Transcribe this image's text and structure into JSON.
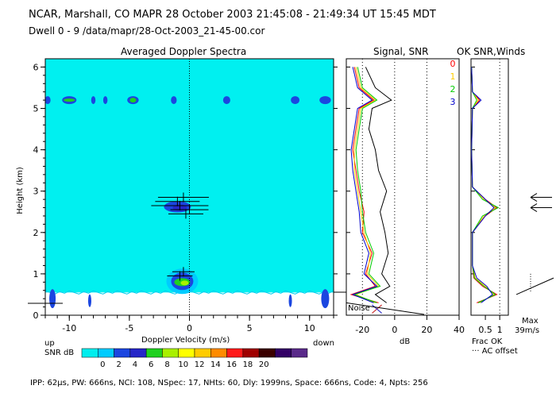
{
  "header": {
    "line1": "NCAR, Marshall, CO  MAPR  28 October 2003  21:45:08 - 21:49:34 UT    15:45 MDT",
    "line2": "Dwell  0 -  9   /data/mapr/28-Oct-2003_21-45-00.cor"
  },
  "footer": {
    "params": "IPP:  62µs,  PW:  666ns,  NCI: 108,  NSpec: 17,  NHts: 60,  Dly: 1999ns,  Space:  666ns,  Code: 4,  Npts: 256"
  },
  "colors": {
    "background": "#00f0f0",
    "scale": [
      "#00eeee",
      "#00ccff",
      "#1b46e0",
      "#2626c8",
      "#1fd11f",
      "#a9f000",
      "#ffff00",
      "#ffcc00",
      "#ff8c00",
      "#ff1a1a",
      "#a00000",
      "#3b0000",
      "#330066",
      "#5a2a8a"
    ]
  },
  "chart_data": [
    {
      "type": "heatmap",
      "title": "Averaged Doppler Spectra",
      "xlabel": "Doppler Velocity (m/s)",
      "ylabel": "Height (km)",
      "xlim": [
        -12,
        12
      ],
      "ylim": [
        0,
        6.2
      ],
      "x_ticks": [
        -10,
        -5,
        0,
        5,
        10
      ],
      "y_ticks": [
        0,
        1,
        2,
        3,
        4,
        5,
        6
      ],
      "x_left_label": "up",
      "x_right_label": "down",
      "colorbar": {
        "label": "SNR dB",
        "ticks": [
          "0",
          "2",
          "4",
          "6",
          "8",
          "10",
          "12",
          "14",
          "16",
          "18",
          "20"
        ]
      },
      "features": [
        {
          "name": "echo-layer-5km",
          "velocity_center": 0,
          "height_km": 5.2
        },
        {
          "name": "echo-layer-2.6km",
          "velocity_center": -0.5,
          "height_km": 2.6
        },
        {
          "name": "echo-lowlevel-0.8km",
          "velocity_center": -1,
          "height_km": 0.8
        }
      ]
    },
    {
      "type": "line",
      "title": "Signal, SNR",
      "xlabel": "dB",
      "x_ticks": [
        -20,
        0,
        20,
        40
      ],
      "xlim": [
        -30,
        40
      ],
      "ylim": [
        0,
        6.2
      ],
      "annotation": "Noise",
      "series": [
        {
          "name": "Signal",
          "color": "#000000",
          "height": [
            0.3,
            0.5,
            0.7,
            1.0,
            1.5,
            2.0,
            2.5,
            3.0,
            3.5,
            4.0,
            4.5,
            5.0,
            5.2,
            5.5,
            6.0
          ],
          "values": [
            -5,
            -12,
            -3,
            -8,
            -4,
            -6,
            -9,
            -5,
            -10,
            -12,
            -16,
            -14,
            -2,
            -12,
            -18
          ]
        },
        {
          "name": "SNR 0",
          "color": "#ff0000",
          "height": [
            0.3,
            0.5,
            0.7,
            1.0,
            1.5,
            2.0,
            2.5,
            3.0,
            3.5,
            4.0,
            4.5,
            5.0,
            5.2,
            5.5,
            6.0
          ],
          "values": [
            -10,
            -27,
            -12,
            -18,
            -14,
            -20,
            -19,
            -22,
            -24,
            -26,
            -24,
            -22,
            -13,
            -22,
            -25
          ]
        },
        {
          "name": "SNR 1",
          "color": "#ffcc00",
          "height": [
            0.3,
            0.5,
            0.7,
            1.0,
            1.5,
            2.0,
            2.5,
            3.0,
            3.5,
            4.0,
            4.5,
            5.0,
            5.2,
            5.5,
            6.0
          ],
          "values": [
            -12,
            -24,
            -10,
            -17,
            -15,
            -19,
            -21,
            -23,
            -25,
            -25,
            -23,
            -21,
            -12,
            -21,
            -24
          ]
        },
        {
          "name": "SNR 2",
          "color": "#00cc00",
          "height": [
            0.3,
            0.5,
            0.7,
            1.0,
            1.5,
            2.0,
            2.5,
            3.0,
            3.5,
            4.0,
            4.5,
            5.0,
            5.2,
            5.5,
            6.0
          ],
          "values": [
            -11,
            -25,
            -9,
            -16,
            -13,
            -18,
            -20,
            -21,
            -23,
            -24,
            -22,
            -20,
            -11,
            -20,
            -23
          ]
        },
        {
          "name": "SNR 3",
          "color": "#0000cc",
          "height": [
            0.3,
            0.5,
            0.7,
            1.0,
            1.5,
            2.0,
            2.5,
            3.0,
            3.5,
            4.0,
            4.5,
            5.0,
            5.2,
            5.5,
            6.0
          ],
          "values": [
            -13,
            -26,
            -11,
            -19,
            -16,
            -21,
            -22,
            -24,
            -26,
            -27,
            -25,
            -23,
            -14,
            -23,
            -26
          ]
        }
      ]
    },
    {
      "type": "line",
      "title": "OK SNR,Winds",
      "xlabel": "Frac OK",
      "x_ticks": [
        "0.5",
        "1"
      ],
      "xlim": [
        0,
        1.3
      ],
      "ylim": [
        0,
        6.2
      ],
      "legend": [
        "0",
        "1",
        "2",
        "3"
      ],
      "notes": {
        "max_label": "Max",
        "max_value": "39m/s",
        "offset_label": "··· AC offset"
      },
      "series": [
        {
          "name": "0",
          "color": "#ff0000",
          "height": [
            0.3,
            0.5,
            0.7,
            0.9,
            1.2,
            2.0,
            2.4,
            2.6,
            2.8,
            3.1,
            4.0,
            5.0,
            5.2,
            5.4,
            6.0
          ],
          "values": [
            0.2,
            0.9,
            0.4,
            0.1,
            0.05,
            0.05,
            0.5,
            0.9,
            0.5,
            0.05,
            0.02,
            0.05,
            0.3,
            0.05,
            0.02
          ]
        },
        {
          "name": "1",
          "color": "#ffcc00",
          "height": [
            0.3,
            0.5,
            0.7,
            0.9,
            1.2,
            2.0,
            2.4,
            2.6,
            2.8,
            3.1,
            4.0,
            5.0,
            5.2,
            5.4,
            6.0
          ],
          "values": [
            0.3,
            0.8,
            0.5,
            0.15,
            0.05,
            0.05,
            0.45,
            0.85,
            0.45,
            0.05,
            0.02,
            0.05,
            0.25,
            0.05,
            0.02
          ]
        },
        {
          "name": "2",
          "color": "#00cc00",
          "height": [
            0.3,
            0.5,
            0.7,
            0.9,
            1.2,
            2.0,
            2.4,
            2.6,
            2.8,
            3.1,
            4.0,
            5.0,
            5.2,
            5.4,
            6.0
          ],
          "values": [
            0.25,
            0.85,
            0.45,
            0.12,
            0.05,
            0.05,
            0.4,
            0.95,
            0.4,
            0.05,
            0.02,
            0.05,
            0.2,
            0.05,
            0.02
          ]
        },
        {
          "name": "3",
          "color": "#0000cc",
          "height": [
            0.3,
            0.5,
            0.7,
            0.9,
            1.2,
            2.0,
            2.4,
            2.6,
            2.8,
            3.1,
            4.0,
            5.0,
            5.2,
            5.4,
            6.0
          ],
          "values": [
            0.35,
            0.75,
            0.55,
            0.2,
            0.05,
            0.05,
            0.5,
            0.8,
            0.5,
            0.05,
            0.02,
            0.05,
            0.35,
            0.05,
            0.02
          ]
        }
      ]
    }
  ]
}
